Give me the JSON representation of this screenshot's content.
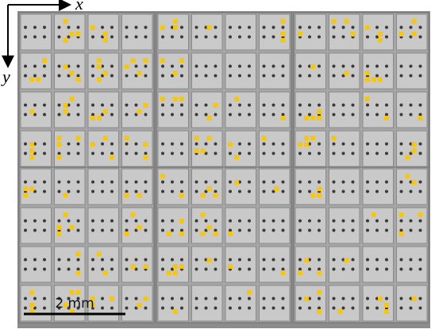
{
  "axes": {
    "x": "x",
    "y": "y"
  },
  "scale_bar": {
    "label": "2 mm"
  }
}
